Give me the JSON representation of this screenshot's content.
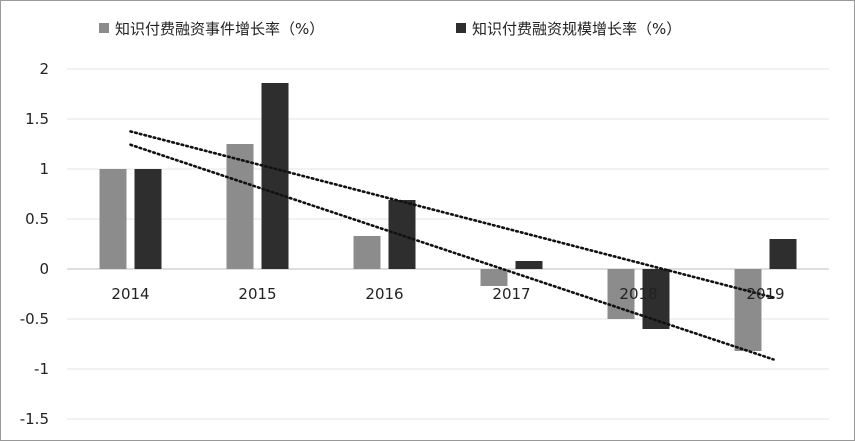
{
  "chart_data": {
    "type": "bar",
    "categories": [
      "2014",
      "2015",
      "2016",
      "2017",
      "2018",
      "2019"
    ],
    "series": [
      {
        "name": "知识付费融资事件增长率（%）",
        "color": "#8c8c8c",
        "values": [
          1.0,
          1.25,
          0.33,
          -0.17,
          -0.5,
          -0.82
        ]
      },
      {
        "name": "知识付费融资规模增长率（%）",
        "color": "#2e2e2e",
        "values": [
          1.0,
          1.86,
          0.69,
          0.08,
          -0.6,
          0.3
        ]
      }
    ],
    "trendlines": "linear, dotted, one per series",
    "ylim": [
      -1.5,
      2
    ],
    "yticks": [
      2,
      1.5,
      1,
      0.5,
      0,
      -0.5,
      -1,
      -1.5
    ],
    "ytick_labels": [
      "2",
      "1.5",
      "1",
      "0.5",
      "0",
      "-0.5",
      "-1",
      "-1.5"
    ],
    "xlabel": "",
    "ylabel": "",
    "grid": true,
    "legend_position": "top"
  }
}
